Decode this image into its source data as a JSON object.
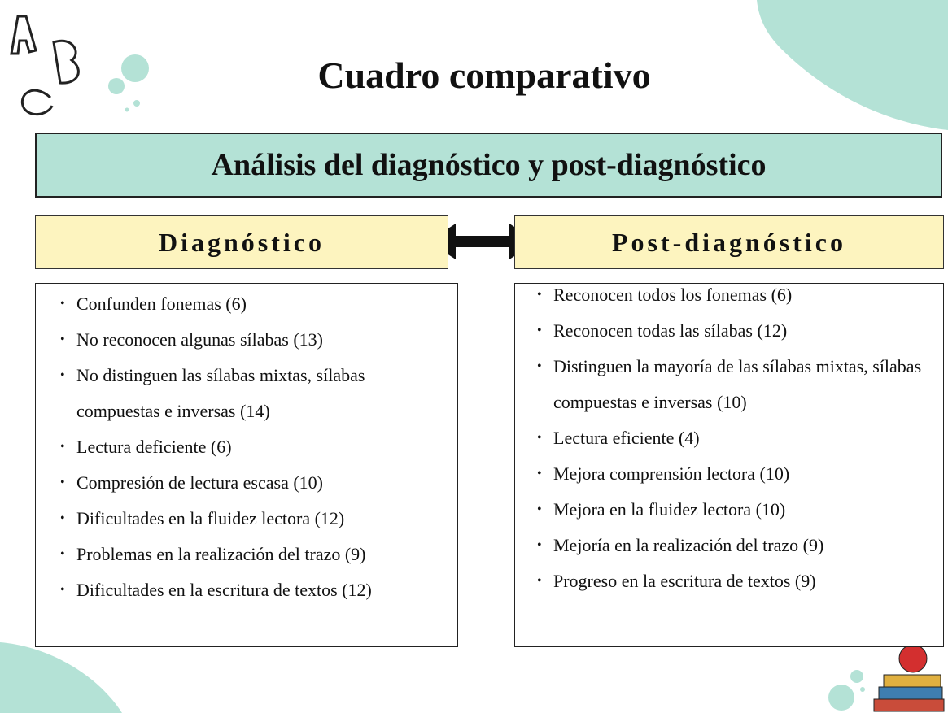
{
  "header": {
    "title": "Cuadro comparativo",
    "subtitle": "Análisis del diagnóstico y post-diagnóstico"
  },
  "columns": [
    {
      "heading": "Diagnóstico",
      "items": [
        "Confunden fonemas (6)",
        "No reconocen algunas sílabas (13)",
        "No distinguen las sílabas mixtas, sílabas compuestas e inversas (14)",
        "Lectura deficiente (6)",
        "Compresión de lectura escasa (10)",
        "Dificultades en la fluidez lectora (12)",
        "Problemas en la realización del trazo (9)",
        "Dificultades en la escritura de textos (12)"
      ]
    },
    {
      "heading": "Post-diagnóstico",
      "items": [
        "Reconocen todos los fonemas (6)",
        "Reconocen todas las sílabas (12)",
        "Distinguen la mayoría de las sílabas mixtas, sílabas compuestas e inversas (10)",
        "Lectura eficiente (4)",
        "Mejora comprensión lectora (10)",
        "Mejora en la fluidez lectora (10)",
        "Mejoría en la realización del trazo (9)",
        "Progreso en la escritura de textos (9)"
      ]
    }
  ]
}
